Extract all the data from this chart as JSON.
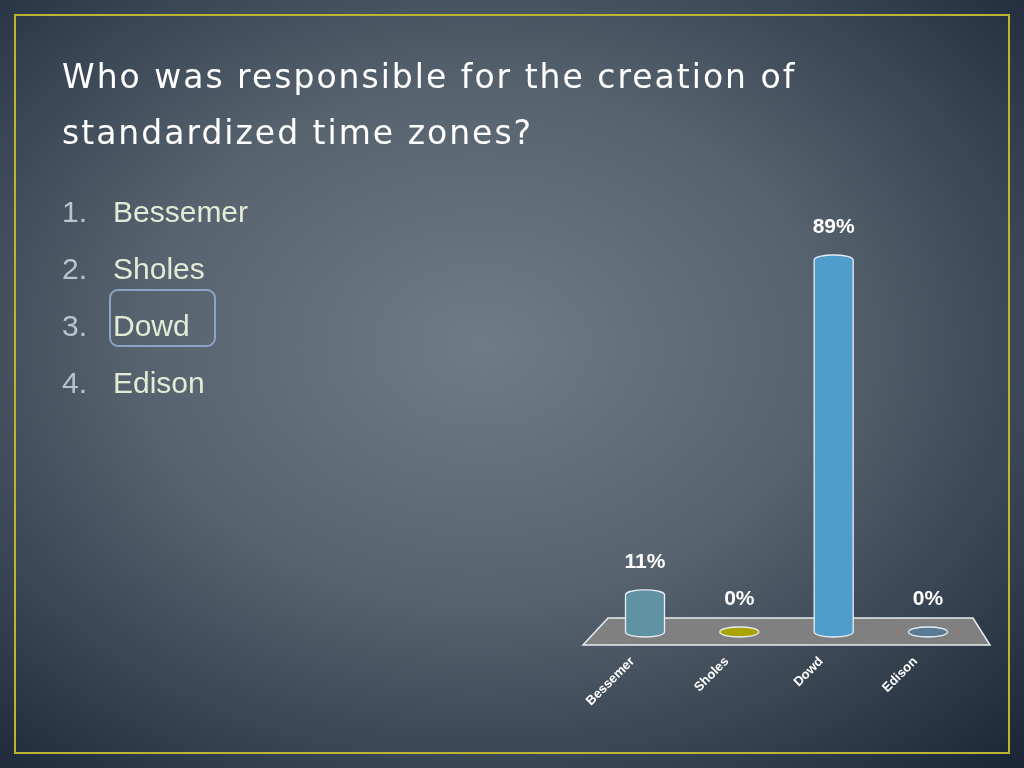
{
  "chart_data": {
    "type": "bar",
    "title": "Who was responsible for the creation of standardized time zones?",
    "categories": [
      "Bessemer",
      "Sholes",
      "Dowd",
      "Edison"
    ],
    "values": [
      11,
      0,
      89,
      0
    ],
    "colors": [
      "#5f93a4",
      "#a9a400",
      "#4f9dcb",
      "#5b7b92"
    ],
    "value_labels": [
      "11%",
      "0%",
      "89%",
      "0%"
    ],
    "annotations": [
      "1. Bessemer",
      "2. Sholes",
      "3. Dowd",
      "4. Edison"
    ]
  }
}
